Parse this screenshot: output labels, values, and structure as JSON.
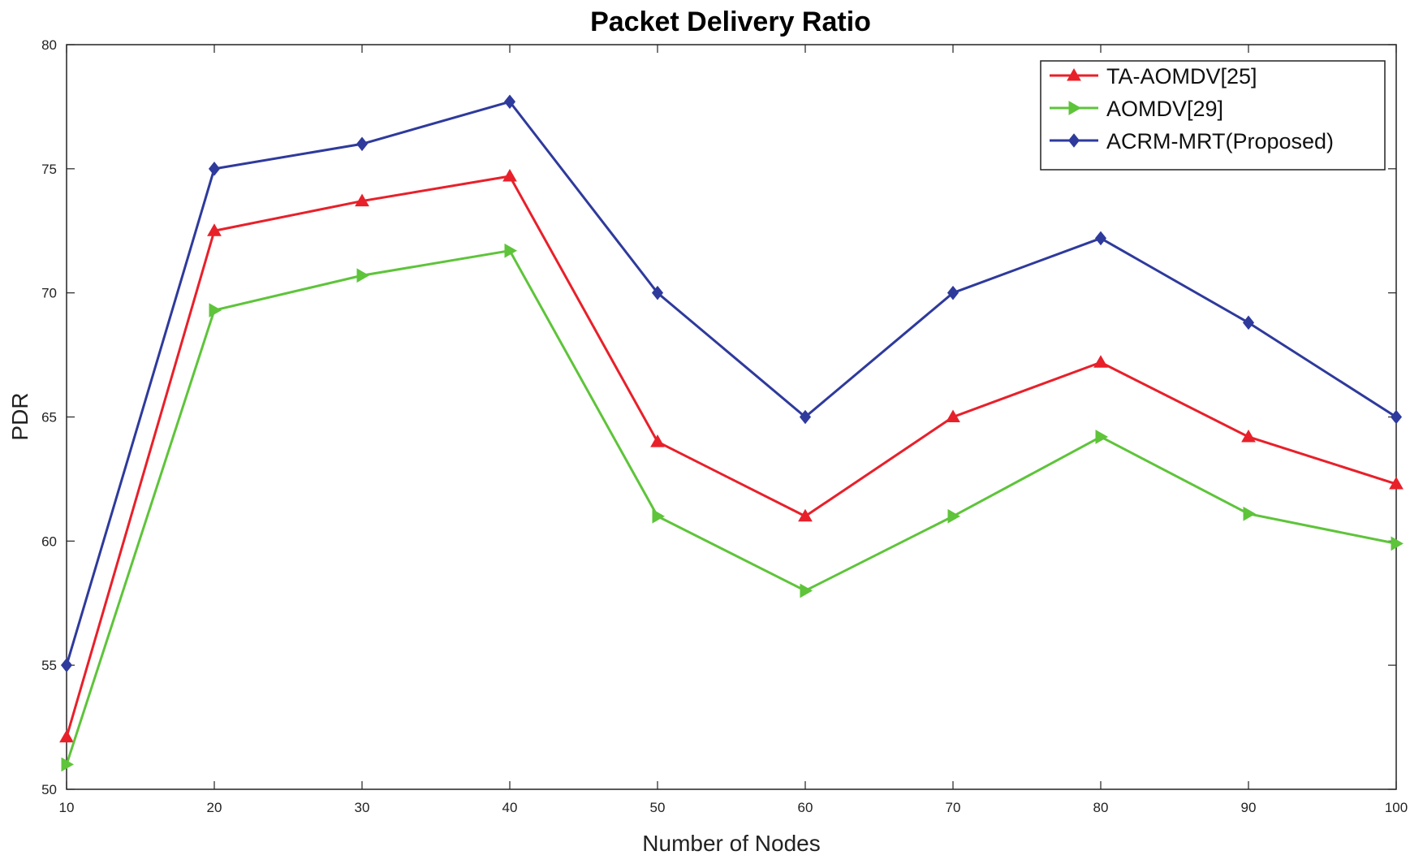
{
  "chart_data": {
    "type": "line",
    "title": "Packet Delivery Ratio",
    "xlabel": "Number of Nodes",
    "ylabel": "PDR",
    "x": [
      10,
      20,
      30,
      40,
      50,
      60,
      70,
      80,
      90,
      100
    ],
    "xlim": [
      10,
      100
    ],
    "ylim": [
      50,
      80
    ],
    "xticks": [
      "10",
      "20",
      "30",
      "40",
      "50",
      "60",
      "70",
      "80",
      "90",
      "100"
    ],
    "yticks": [
      "50",
      "55",
      "60",
      "65",
      "70",
      "75",
      "80"
    ],
    "grid": false,
    "legend_position": "top-right",
    "series": [
      {
        "name": "TA-AOMDV[25]",
        "color": "#e8202a",
        "marker": "triangle-up",
        "values": [
          52.1,
          72.5,
          73.7,
          74.7,
          64.0,
          61.0,
          65.0,
          67.2,
          64.2,
          62.3
        ]
      },
      {
        "name": "AOMDV[29]",
        "color": "#5ec43a",
        "marker": "triangle-right",
        "values": [
          51.0,
          69.3,
          70.7,
          71.7,
          61.0,
          58.0,
          61.0,
          64.2,
          61.1,
          59.9
        ]
      },
      {
        "name": "ACRM-MRT(Proposed)",
        "color": "#2e3a9c",
        "marker": "diamond",
        "values": [
          55.0,
          75.0,
          76.0,
          77.7,
          70.0,
          65.0,
          70.0,
          72.2,
          68.8,
          65.0
        ]
      }
    ]
  }
}
